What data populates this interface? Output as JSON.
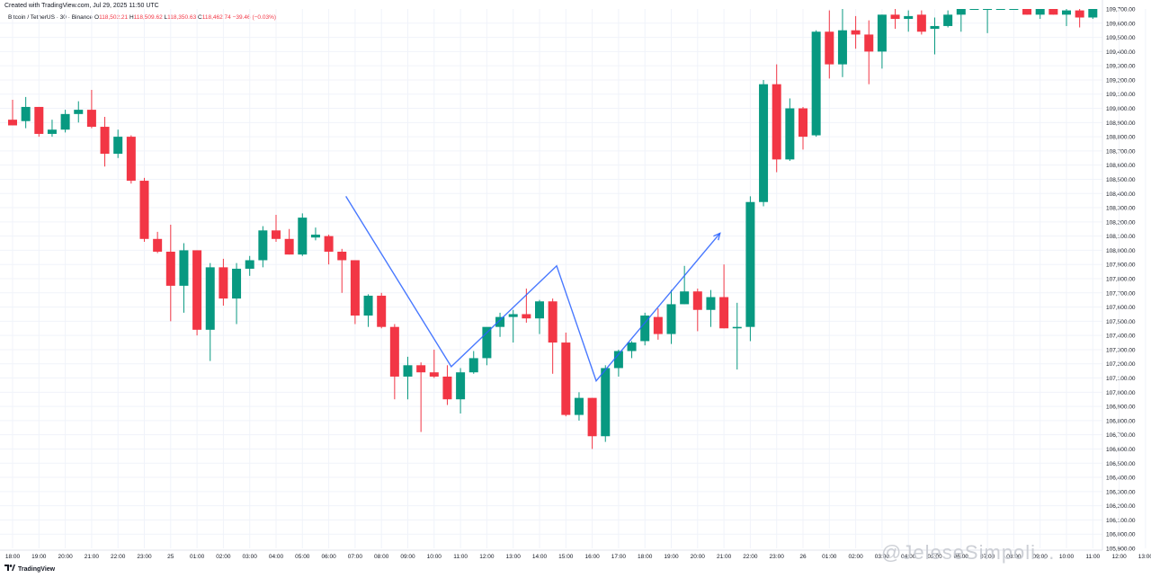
{
  "header": {
    "created": "Created with TradingView.com, Jul 29, 2025 11:50 UTC",
    "symbol": "Bitcoin / TetherUS · 30 · Binance",
    "o_label": "O",
    "o_value": "118,502.21",
    "h_label": "H",
    "h_value": "118,509.62",
    "l_label": "L",
    "l_value": "118,350.63",
    "c_label": "C",
    "c_value": "118,462.74",
    "change": "−39.46 (−0.03%)"
  },
  "footer": {
    "brand": "TradingView",
    "watermark": "@JeleseSimpoli..."
  },
  "colors": {
    "up": "#089981",
    "down": "#f23645",
    "drawing": "#2962ff",
    "grid": "#f0f3fa",
    "axis_text": "#131722"
  },
  "chart_data": {
    "type": "candlestick",
    "title": "Bitcoin / TetherUS · 30 · Binance",
    "ylim": [
      105900,
      109700
    ],
    "y_ticks": [
      106000,
      106100,
      106200,
      106300,
      106400,
      106500,
      106600,
      106700,
      106800,
      106900,
      107000,
      107100,
      107200,
      107300,
      107400,
      107500,
      107600,
      107700,
      107800,
      107900,
      108000,
      108100,
      108200,
      108300,
      108400,
      108500,
      108600,
      108700,
      108800,
      108900,
      109000,
      109100,
      109200,
      109300,
      109400,
      109500,
      109600
    ],
    "y_tick_labels_extra": [
      {
        "value": 105900,
        "label": "105,900.00"
      },
      {
        "value": 109700,
        "label": "109,700.00"
      }
    ],
    "x_ticks": [
      {
        "index": 0,
        "label": "18:00"
      },
      {
        "index": 2,
        "label": "19:00"
      },
      {
        "index": 4,
        "label": "20:00"
      },
      {
        "index": 6,
        "label": "21:00"
      },
      {
        "index": 8,
        "label": "22:00"
      },
      {
        "index": 10,
        "label": "23:00"
      },
      {
        "index": 12,
        "label": "25"
      },
      {
        "index": 14,
        "label": "01:00"
      },
      {
        "index": 16,
        "label": "02:00"
      },
      {
        "index": 18,
        "label": "03:00"
      },
      {
        "index": 20,
        "label": "04:00"
      },
      {
        "index": 22,
        "label": "05:00"
      },
      {
        "index": 24,
        "label": "06:00"
      },
      {
        "index": 26,
        "label": "07:00"
      },
      {
        "index": 28,
        "label": "08:00"
      },
      {
        "index": 30,
        "label": "09:00"
      },
      {
        "index": 32,
        "label": "10:00"
      },
      {
        "index": 34,
        "label": "11:00"
      },
      {
        "index": 36,
        "label": "12:00"
      },
      {
        "index": 38,
        "label": "13:00"
      },
      {
        "index": 40,
        "label": "14:00"
      },
      {
        "index": 42,
        "label": "15:00"
      },
      {
        "index": 44,
        "label": "16:00"
      },
      {
        "index": 46,
        "label": "17:00"
      },
      {
        "index": 48,
        "label": "18:00"
      },
      {
        "index": 50,
        "label": "19:00"
      },
      {
        "index": 52,
        "label": "20:00"
      },
      {
        "index": 54,
        "label": "21:00"
      },
      {
        "index": 56,
        "label": "22:00"
      },
      {
        "index": 58,
        "label": "23:00"
      },
      {
        "index": 60,
        "label": "26"
      },
      {
        "index": 62,
        "label": "01:00"
      },
      {
        "index": 64,
        "label": "02:00"
      },
      {
        "index": 66,
        "label": "03:00"
      },
      {
        "index": 68,
        "label": "04:00"
      },
      {
        "index": 70,
        "label": "05:00"
      },
      {
        "index": 72,
        "label": "06:00"
      },
      {
        "index": 74,
        "label": "07:00"
      },
      {
        "index": 76,
        "label": "08:00"
      },
      {
        "index": 78,
        "label": "09:00"
      },
      {
        "index": 80,
        "label": "10:00"
      },
      {
        "index": 82,
        "label": "11:00"
      },
      {
        "index": 84,
        "label": "12:00"
      },
      {
        "index": 86,
        "label": "13:00"
      }
    ],
    "candles": [
      {
        "o": 108920,
        "h": 109060,
        "l": 108880,
        "c": 108880
      },
      {
        "o": 108910,
        "h": 109080,
        "l": 108860,
        "c": 109010
      },
      {
        "o": 109010,
        "h": 109010,
        "l": 108800,
        "c": 108820
      },
      {
        "o": 108820,
        "h": 108920,
        "l": 108800,
        "c": 108850
      },
      {
        "o": 108850,
        "h": 108990,
        "l": 108830,
        "c": 108960
      },
      {
        "o": 108960,
        "h": 109050,
        "l": 108900,
        "c": 108990
      },
      {
        "o": 108990,
        "h": 109130,
        "l": 108860,
        "c": 108870
      },
      {
        "o": 108870,
        "h": 108940,
        "l": 108590,
        "c": 108680
      },
      {
        "o": 108680,
        "h": 108850,
        "l": 108650,
        "c": 108800
      },
      {
        "o": 108800,
        "h": 108810,
        "l": 108470,
        "c": 108490
      },
      {
        "o": 108490,
        "h": 108510,
        "l": 108060,
        "c": 108080
      },
      {
        "o": 108080,
        "h": 108130,
        "l": 107980,
        "c": 107990
      },
      {
        "o": 107990,
        "h": 108180,
        "l": 107500,
        "c": 107750
      },
      {
        "o": 107750,
        "h": 108050,
        "l": 107560,
        "c": 108000
      },
      {
        "o": 108000,
        "h": 108000,
        "l": 107400,
        "c": 107440
      },
      {
        "o": 107440,
        "h": 107910,
        "l": 107220,
        "c": 107880
      },
      {
        "o": 107880,
        "h": 107940,
        "l": 107610,
        "c": 107660
      },
      {
        "o": 107660,
        "h": 107910,
        "l": 107480,
        "c": 107870
      },
      {
        "o": 107870,
        "h": 107960,
        "l": 107820,
        "c": 107930
      },
      {
        "o": 107930,
        "h": 108170,
        "l": 107880,
        "c": 108140
      },
      {
        "o": 108140,
        "h": 108250,
        "l": 108060,
        "c": 108080
      },
      {
        "o": 108080,
        "h": 108150,
        "l": 107970,
        "c": 107970
      },
      {
        "o": 107970,
        "h": 108260,
        "l": 107960,
        "c": 108230
      },
      {
        "o": 108090,
        "h": 108160,
        "l": 108070,
        "c": 108110
      },
      {
        "o": 108100,
        "h": 108110,
        "l": 107900,
        "c": 107990
      },
      {
        "o": 107990,
        "h": 108010,
        "l": 107700,
        "c": 107930
      },
      {
        "o": 107930,
        "h": 107930,
        "l": 107480,
        "c": 107540
      },
      {
        "o": 107540,
        "h": 107690,
        "l": 107460,
        "c": 107680
      },
      {
        "o": 107680,
        "h": 107700,
        "l": 107450,
        "c": 107460
      },
      {
        "o": 107460,
        "h": 107480,
        "l": 106950,
        "c": 107110
      },
      {
        "o": 107110,
        "h": 107250,
        "l": 106950,
        "c": 107190
      },
      {
        "o": 107190,
        "h": 107210,
        "l": 106720,
        "c": 107140
      },
      {
        "o": 107140,
        "h": 107300,
        "l": 107100,
        "c": 107110
      },
      {
        "o": 107110,
        "h": 107190,
        "l": 106910,
        "c": 106950
      },
      {
        "o": 106950,
        "h": 107170,
        "l": 106850,
        "c": 107140
      },
      {
        "o": 107140,
        "h": 107290,
        "l": 107130,
        "c": 107240
      },
      {
        "o": 107240,
        "h": 107450,
        "l": 107190,
        "c": 107460
      },
      {
        "o": 107460,
        "h": 107560,
        "l": 107390,
        "c": 107530
      },
      {
        "o": 107530,
        "h": 107580,
        "l": 107350,
        "c": 107550
      },
      {
        "o": 107550,
        "h": 107730,
        "l": 107490,
        "c": 107520
      },
      {
        "o": 107520,
        "h": 107650,
        "l": 107410,
        "c": 107640
      },
      {
        "o": 107640,
        "h": 107660,
        "l": 107130,
        "c": 107350
      },
      {
        "o": 107350,
        "h": 107420,
        "l": 106830,
        "c": 106840
      },
      {
        "o": 106840,
        "h": 107000,
        "l": 106800,
        "c": 106960
      },
      {
        "o": 106960,
        "h": 106960,
        "l": 106600,
        "c": 106690
      },
      {
        "o": 106690,
        "h": 107190,
        "l": 106650,
        "c": 107170
      },
      {
        "o": 107170,
        "h": 107300,
        "l": 107110,
        "c": 107290
      },
      {
        "o": 107290,
        "h": 107360,
        "l": 107240,
        "c": 107350
      },
      {
        "o": 107360,
        "h": 107560,
        "l": 107330,
        "c": 107540
      },
      {
        "o": 107530,
        "h": 107590,
        "l": 107370,
        "c": 107410
      },
      {
        "o": 107410,
        "h": 107720,
        "l": 107340,
        "c": 107620
      },
      {
        "o": 107620,
        "h": 107890,
        "l": 107620,
        "c": 107710
      },
      {
        "o": 107710,
        "h": 107730,
        "l": 107430,
        "c": 107580
      },
      {
        "o": 107580,
        "h": 107720,
        "l": 107460,
        "c": 107670
      },
      {
        "o": 107670,
        "h": 107900,
        "l": 107450,
        "c": 107450
      },
      {
        "o": 107450,
        "h": 107630,
        "l": 107160,
        "c": 107460
      },
      {
        "o": 107460,
        "h": 108380,
        "l": 107360,
        "c": 108340
      },
      {
        "o": 108340,
        "h": 109200,
        "l": 108310,
        "c": 109170
      },
      {
        "o": 109170,
        "h": 109310,
        "l": 108550,
        "c": 108640
      },
      {
        "o": 108640,
        "h": 109070,
        "l": 108630,
        "c": 109000
      },
      {
        "o": 109000,
        "h": 109010,
        "l": 108710,
        "c": 108800
      },
      {
        "o": 108810,
        "h": 109550,
        "l": 108800,
        "c": 109540
      },
      {
        "o": 109540,
        "h": 109690,
        "l": 109210,
        "c": 109310
      },
      {
        "o": 109310,
        "h": 109700,
        "l": 109220,
        "c": 109550
      },
      {
        "o": 109550,
        "h": 109650,
        "l": 109420,
        "c": 109520
      },
      {
        "o": 109520,
        "h": 109620,
        "l": 109170,
        "c": 109400
      },
      {
        "o": 109400,
        "h": 109660,
        "l": 109280,
        "c": 109660
      },
      {
        "o": 109660,
        "h": 109700,
        "l": 109560,
        "c": 109630
      },
      {
        "o": 109630,
        "h": 109690,
        "l": 109540,
        "c": 109650
      },
      {
        "o": 109660,
        "h": 109690,
        "l": 109520,
        "c": 109540
      },
      {
        "o": 109560,
        "h": 109640,
        "l": 109380,
        "c": 109580
      },
      {
        "o": 109580,
        "h": 109690,
        "l": 109570,
        "c": 109660
      },
      {
        "o": 109660,
        "h": 109700,
        "l": 109540,
        "c": 109700
      },
      {
        "o": 109700,
        "h": 109700,
        "l": 109700,
        "c": 109700
      },
      {
        "o": 109700,
        "h": 109700,
        "l": 109530,
        "c": 109700
      },
      {
        "o": 109700,
        "h": 109700,
        "l": 109700,
        "c": 109700
      },
      {
        "o": 109700,
        "h": 109700,
        "l": 109700,
        "c": 109700
      },
      {
        "o": 109700,
        "h": 109700,
        "l": 109660,
        "c": 109660
      },
      {
        "o": 109660,
        "h": 109700,
        "l": 109630,
        "c": 109700
      },
      {
        "o": 109700,
        "h": 109700,
        "l": 109660,
        "c": 109660
      },
      {
        "o": 109660,
        "h": 109700,
        "l": 109580,
        "c": 109690
      },
      {
        "o": 109690,
        "h": 109700,
        "l": 109570,
        "c": 109640
      },
      {
        "o": 109640,
        "h": 109700,
        "l": 109630,
        "c": 109700
      },
      {
        "o": 109700,
        "h": 109700,
        "l": 109650,
        "c": 109660
      },
      {
        "o": 109660,
        "h": 109700,
        "l": 109600,
        "c": 109700
      },
      {
        "o": 109700,
        "h": 109700,
        "l": 109670,
        "c": 109700
      },
      {
        "o": 109700,
        "h": 109700,
        "l": 109660,
        "c": 109700
      }
    ],
    "drawing_path": [
      {
        "i": 25.3,
        "v": 108380
      },
      {
        "i": 33.3,
        "v": 107180
      },
      {
        "i": 41.3,
        "v": 107890
      },
      {
        "i": 44.3,
        "v": 107080
      },
      {
        "i": 53.7,
        "v": 108120
      }
    ]
  }
}
